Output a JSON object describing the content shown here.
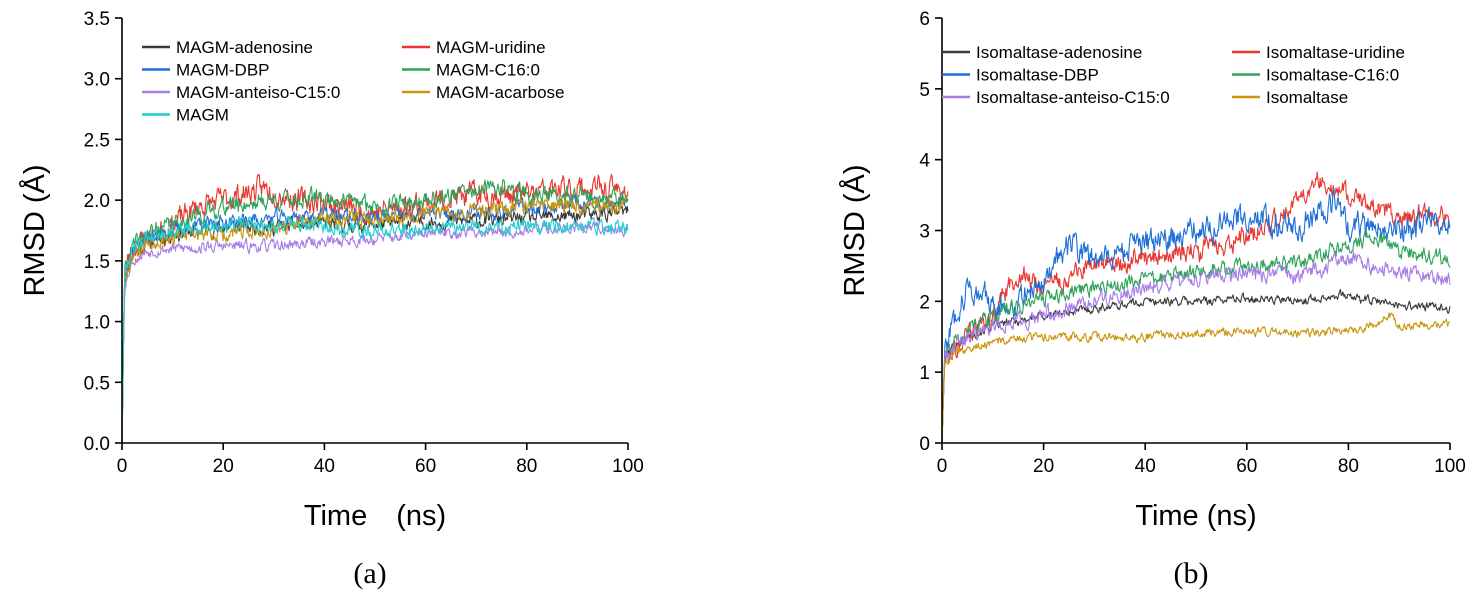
{
  "chart_data": [
    {
      "type": "line",
      "panel_label": "(a)",
      "xlabel": "Time　(ns)",
      "ylabel": "RMSD (Å)",
      "xlim": [
        0,
        100
      ],
      "ylim": [
        0,
        3.5
      ],
      "xticks": [
        0,
        20,
        40,
        60,
        80,
        100
      ],
      "yticks": [
        0.0,
        0.5,
        1.0,
        1.5,
        2.0,
        2.5,
        3.0,
        3.5
      ],
      "ytick_labels": [
        "0.0",
        "0.5",
        "1.0",
        "1.5",
        "2.0",
        "2.5",
        "3.0",
        "3.5"
      ],
      "legend_position": "top-left",
      "legend_columns": 2,
      "series": [
        {
          "name": "MAGM-adenosine",
          "color": "#3a3a3a",
          "noise": 0.05,
          "seed": 11,
          "x": [
            0,
            0.5,
            2,
            5,
            10,
            20,
            30,
            40,
            50,
            60,
            70,
            80,
            90,
            100
          ],
          "y": [
            0,
            1.35,
            1.55,
            1.65,
            1.72,
            1.78,
            1.78,
            1.8,
            1.8,
            1.82,
            1.83,
            1.85,
            1.87,
            1.9
          ]
        },
        {
          "name": "MAGM-uridine",
          "color": "#e8372f",
          "noise": 0.08,
          "seed": 23,
          "x": [
            0,
            0.5,
            2,
            5,
            10,
            15,
            20,
            28,
            35,
            40,
            50,
            60,
            70,
            80,
            90,
            100
          ],
          "y": [
            0,
            1.4,
            1.6,
            1.7,
            1.8,
            1.95,
            2.0,
            2.1,
            2.0,
            1.98,
            1.9,
            1.98,
            2.05,
            2.05,
            2.1,
            2.08
          ]
        },
        {
          "name": "MAGM-DBP",
          "color": "#1f6fd6",
          "noise": 0.05,
          "seed": 37,
          "x": [
            0,
            0.5,
            2,
            5,
            10,
            20,
            30,
            40,
            50,
            60,
            70,
            80,
            90,
            100
          ],
          "y": [
            0,
            1.4,
            1.6,
            1.7,
            1.75,
            1.82,
            1.85,
            1.88,
            1.85,
            1.88,
            1.9,
            1.95,
            1.95,
            1.97
          ]
        },
        {
          "name": "MAGM-C16:0",
          "color": "#2fa35a",
          "noise": 0.06,
          "seed": 41,
          "x": [
            0,
            0.5,
            2,
            5,
            10,
            20,
            30,
            40,
            50,
            60,
            70,
            75,
            80,
            90,
            100
          ],
          "y": [
            0,
            1.4,
            1.6,
            1.72,
            1.8,
            1.95,
            2.0,
            2.02,
            1.95,
            2.0,
            2.08,
            2.1,
            2.05,
            2.02,
            2.0
          ]
        },
        {
          "name": "MAGM-anteiso-C15:0",
          "color": "#a77ee6",
          "noise": 0.04,
          "seed": 53,
          "x": [
            0,
            0.5,
            2,
            5,
            10,
            20,
            30,
            40,
            50,
            60,
            70,
            80,
            90,
            100
          ],
          "y": [
            0,
            1.3,
            1.5,
            1.58,
            1.6,
            1.62,
            1.62,
            1.66,
            1.68,
            1.72,
            1.74,
            1.76,
            1.78,
            1.76
          ]
        },
        {
          "name": "MAGM-acarbose",
          "color": "#c9960c",
          "noise": 0.05,
          "seed": 67,
          "x": [
            0,
            0.5,
            2,
            5,
            10,
            20,
            30,
            40,
            50,
            60,
            70,
            80,
            90,
            100
          ],
          "y": [
            0,
            1.35,
            1.55,
            1.65,
            1.7,
            1.72,
            1.75,
            1.85,
            1.85,
            1.9,
            1.92,
            1.95,
            1.96,
            1.95
          ]
        },
        {
          "name": "MAGM",
          "color": "#1fcfcf",
          "noise": 0.05,
          "seed": 79,
          "x": [
            0,
            0.5,
            2,
            5,
            10,
            20,
            30,
            40,
            50,
            60,
            70,
            80,
            90,
            100
          ],
          "y": [
            0,
            1.4,
            1.6,
            1.7,
            1.75,
            1.8,
            1.8,
            1.78,
            1.75,
            1.76,
            1.78,
            1.78,
            1.78,
            1.78
          ]
        }
      ]
    },
    {
      "type": "line",
      "panel_label": "(b)",
      "xlabel": "Time (ns)",
      "ylabel": "RMSD (Å)",
      "xlim": [
        0,
        100
      ],
      "ylim": [
        0,
        6
      ],
      "xticks": [
        0,
        20,
        40,
        60,
        80,
        100
      ],
      "yticks": [
        0,
        1,
        2,
        3,
        4,
        5,
        6
      ],
      "ytick_labels": [
        "0",
        "1",
        "2",
        "3",
        "4",
        "5",
        "6"
      ],
      "legend_position": "top-left",
      "legend_columns": 2,
      "series": [
        {
          "name": "Isomaltase-adenosine",
          "color": "#3a3a3a",
          "noise": 0.05,
          "seed": 101,
          "x": [
            0,
            0.5,
            2,
            5,
            10,
            20,
            30,
            40,
            50,
            60,
            70,
            78,
            85,
            90,
            100
          ],
          "y": [
            0,
            1.2,
            1.35,
            1.5,
            1.65,
            1.8,
            1.9,
            2.0,
            2.0,
            2.05,
            2.0,
            2.1,
            2.0,
            1.95,
            1.9
          ]
        },
        {
          "name": "Isomaltase-uridine",
          "color": "#e8372f",
          "noise": 0.12,
          "seed": 113,
          "x": [
            0,
            0.5,
            2,
            5,
            10,
            15,
            20,
            30,
            40,
            50,
            60,
            65,
            70,
            74,
            80,
            85,
            90,
            100
          ],
          "y": [
            0,
            1.2,
            1.35,
            1.5,
            1.8,
            2.4,
            2.2,
            2.5,
            2.6,
            2.7,
            2.9,
            3.1,
            3.4,
            3.75,
            3.5,
            3.3,
            3.2,
            3.2
          ]
        },
        {
          "name": "Isomaltase-DBP",
          "color": "#1f6fd6",
          "noise": 0.15,
          "seed": 127,
          "x": [
            0,
            0.5,
            2,
            5,
            8,
            10,
            15,
            20,
            25,
            30,
            40,
            50,
            60,
            65,
            70,
            75,
            78,
            80,
            85,
            90,
            100
          ],
          "y": [
            0,
            1.3,
            1.7,
            2.2,
            2.1,
            1.9,
            2.0,
            2.3,
            2.8,
            2.6,
            2.8,
            3.0,
            3.2,
            3.1,
            3.0,
            3.3,
            3.4,
            3.0,
            3.1,
            3.0,
            3.2
          ]
        },
        {
          "name": "Isomaltase-C16:0",
          "color": "#2fa35a",
          "noise": 0.09,
          "seed": 131,
          "x": [
            0,
            0.5,
            2,
            5,
            10,
            20,
            30,
            40,
            50,
            60,
            70,
            80,
            85,
            90,
            100
          ],
          "y": [
            0,
            1.2,
            1.4,
            1.6,
            1.8,
            2.05,
            2.2,
            2.3,
            2.4,
            2.5,
            2.55,
            2.8,
            2.9,
            2.7,
            2.6
          ]
        },
        {
          "name": "Isomaltase-anteiso-C15:0",
          "color": "#a77ee6",
          "noise": 0.09,
          "seed": 149,
          "x": [
            0,
            0.5,
            2,
            5,
            10,
            20,
            30,
            40,
            50,
            60,
            70,
            80,
            85,
            90,
            100
          ],
          "y": [
            0,
            1.2,
            1.35,
            1.5,
            1.65,
            1.8,
            2.0,
            2.2,
            2.3,
            2.4,
            2.35,
            2.6,
            2.5,
            2.4,
            2.3
          ]
        },
        {
          "name": "Isomaltase",
          "color": "#c9960c",
          "noise": 0.05,
          "seed": 157,
          "x": [
            0,
            0.5,
            2,
            5,
            10,
            20,
            30,
            40,
            50,
            60,
            70,
            80,
            85,
            88,
            90,
            100
          ],
          "y": [
            0,
            1.15,
            1.25,
            1.35,
            1.42,
            1.5,
            1.5,
            1.5,
            1.55,
            1.58,
            1.55,
            1.6,
            1.65,
            1.8,
            1.65,
            1.7
          ]
        }
      ]
    }
  ]
}
